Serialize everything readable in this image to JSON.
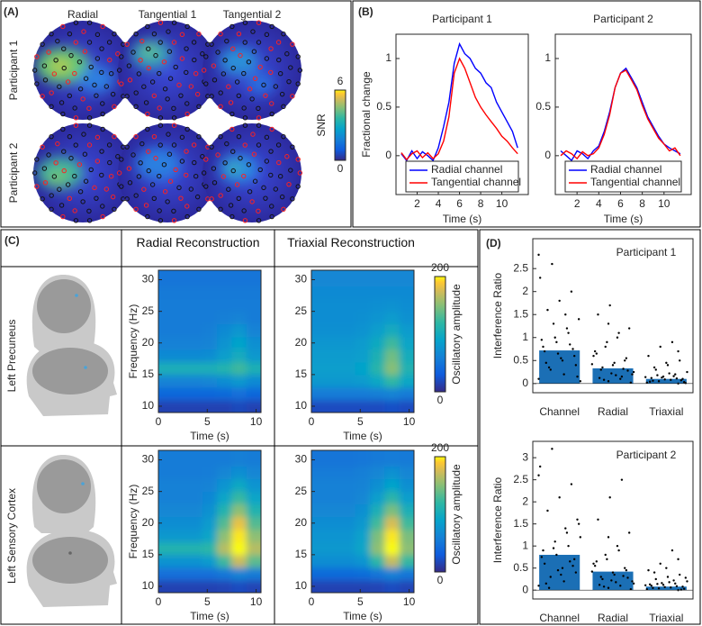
{
  "chart_data": [
    {
      "type": "topomap",
      "panel_label": "(A)",
      "columns": [
        "Radial",
        "Tangential 1",
        "Tangential 2"
      ],
      "rows": [
        "Participant 1",
        "Participant 2"
      ],
      "colorbar_label": "SNR",
      "clim": [
        0,
        6
      ],
      "cticks": [
        0,
        6
      ]
    },
    {
      "type": "line",
      "panel_label": "(B)",
      "title": "Participant 1",
      "xlabel": "Time (s)",
      "ylabel": "Fractional change",
      "x": [
        0.5,
        1,
        1.5,
        2,
        2.5,
        3,
        3.5,
        4,
        4.5,
        5,
        5.5,
        6,
        6.5,
        7,
        7.5,
        8,
        8.5,
        9,
        9.5,
        10,
        10.5,
        11,
        11.5
      ],
      "series": [
        {
          "name": "Radial channel",
          "color": "#0000ff",
          "values": [
            0.02,
            -0.05,
            0.05,
            -0.03,
            0.04,
            0.0,
            -0.05,
            0.08,
            0.3,
            0.55,
            0.95,
            1.15,
            1.05,
            1.0,
            0.9,
            0.85,
            0.75,
            0.7,
            0.55,
            0.45,
            0.35,
            0.25,
            0.08
          ]
        },
        {
          "name": "Tangential channel",
          "color": "#ff0000",
          "values": [
            0.03,
            -0.04,
            0.02,
            0.05,
            -0.02,
            0.03,
            -0.03,
            0.02,
            0.15,
            0.4,
            0.85,
            1.0,
            0.9,
            0.75,
            0.6,
            0.5,
            0.42,
            0.35,
            0.28,
            0.2,
            0.15,
            0.08,
            0.02
          ]
        }
      ],
      "xlim": [
        0,
        12.5
      ],
      "ylim": [
        -0.4,
        1.25
      ],
      "xticks": [
        2,
        4,
        6,
        8,
        10
      ],
      "yticks": [
        0,
        0.5,
        1
      ],
      "legend": "lower center"
    },
    {
      "type": "line",
      "title": "Participant 2",
      "xlabel": "Time (s)",
      "x": [
        0.5,
        1,
        1.5,
        2,
        2.5,
        3,
        3.5,
        4,
        4.5,
        5,
        5.5,
        6,
        6.5,
        7,
        7.5,
        8,
        8.5,
        9,
        9.5,
        10,
        10.5,
        11,
        11.5
      ],
      "series": [
        {
          "name": "Radial channel",
          "color": "#0000ff",
          "values": [
            0.05,
            0.0,
            -0.05,
            0.05,
            0.02,
            -0.03,
            0.05,
            0.1,
            0.25,
            0.45,
            0.7,
            0.85,
            0.9,
            0.8,
            0.7,
            0.55,
            0.4,
            0.3,
            0.2,
            0.12,
            0.08,
            0.05,
            0.02
          ]
        },
        {
          "name": "Tangential channel",
          "color": "#ff0000",
          "values": [
            0.0,
            0.05,
            0.02,
            -0.03,
            0.04,
            0.0,
            0.02,
            0.08,
            0.22,
            0.42,
            0.7,
            0.85,
            0.88,
            0.78,
            0.68,
            0.52,
            0.38,
            0.28,
            0.18,
            0.12,
            0.05,
            0.08,
            0.0
          ]
        }
      ],
      "xlim": [
        0,
        12.5
      ],
      "ylim": [
        -0.4,
        1.25
      ],
      "xticks": [
        2,
        4,
        6,
        8,
        10
      ],
      "yticks": [
        0,
        0.5,
        1
      ],
      "legend": "lower center"
    },
    {
      "type": "heatmap",
      "panel_label": "(C)",
      "title": "Radial Reconstruction",
      "row_label": "Left Precuneus",
      "xlabel": "Time (s)",
      "ylabel": "Frequency (Hz)",
      "x": [
        0.75,
        2.25,
        3.75,
        5.25,
        6.75,
        8.25,
        9.75
      ],
      "y": [
        10,
        12,
        14,
        16,
        18,
        20,
        22,
        24,
        26,
        28,
        30
      ],
      "z": [
        [
          15,
          15,
          15,
          15,
          15,
          18,
          15
        ],
        [
          40,
          40,
          40,
          40,
          42,
          45,
          40
        ],
        [
          62,
          62,
          62,
          64,
          70,
          80,
          68
        ],
        [
          105,
          105,
          105,
          105,
          112,
          125,
          108
        ],
        [
          68,
          68,
          68,
          70,
          85,
          100,
          80
        ],
        [
          60,
          60,
          60,
          62,
          75,
          90,
          72
        ],
        [
          56,
          56,
          56,
          58,
          68,
          78,
          62
        ],
        [
          55,
          55,
          55,
          55,
          58,
          62,
          56
        ],
        [
          55,
          55,
          55,
          55,
          55,
          56,
          55
        ],
        [
          54,
          54,
          54,
          54,
          54,
          54,
          54
        ],
        [
          50,
          50,
          50,
          50,
          50,
          50,
          50
        ]
      ],
      "xlim": [
        0,
        10.5
      ],
      "ylim": [
        9,
        31.5
      ],
      "xticks": [
        0,
        5,
        10
      ],
      "yticks": [
        10,
        15,
        20,
        25,
        30
      ],
      "clim": [
        0,
        200
      ]
    },
    {
      "type": "heatmap",
      "title": "Triaxial Reconstruction",
      "xlabel": "Time (s)",
      "colorbar_label": "Oscillatory amplitude",
      "x": [
        0.75,
        2.25,
        3.75,
        5.25,
        6.75,
        8.25,
        9.75
      ],
      "y": [
        10,
        12,
        14,
        16,
        18,
        20,
        22,
        24,
        26,
        28,
        30
      ],
      "z": [
        [
          20,
          20,
          20,
          20,
          20,
          22,
          20
        ],
        [
          55,
          55,
          55,
          55,
          58,
          62,
          56
        ],
        [
          80,
          80,
          80,
          82,
          95,
          120,
          95
        ],
        [
          85,
          85,
          85,
          90,
          115,
          150,
          110
        ],
        [
          82,
          82,
          82,
          86,
          108,
          142,
          102
        ],
        [
          78,
          78,
          78,
          82,
          98,
          125,
          92
        ],
        [
          72,
          72,
          72,
          75,
          85,
          100,
          82
        ],
        [
          70,
          70,
          70,
          72,
          76,
          82,
          74
        ],
        [
          70,
          70,
          70,
          70,
          72,
          74,
          70
        ],
        [
          68,
          68,
          68,
          68,
          68,
          68,
          68
        ],
        [
          65,
          65,
          65,
          65,
          65,
          65,
          65
        ]
      ],
      "xlim": [
        0,
        10.5
      ],
      "ylim": [
        9,
        31.5
      ],
      "xticks": [
        0,
        5,
        10
      ],
      "yticks": [
        10,
        15,
        20,
        25,
        30
      ],
      "clim": [
        0,
        200
      ],
      "cticks": [
        0,
        200
      ]
    },
    {
      "type": "heatmap",
      "row_label": "Left Sensory Cortex",
      "xlabel": "Time (s)",
      "ylabel": "Frequency (Hz)",
      "x": [
        0.75,
        2.25,
        3.75,
        5.25,
        6.75,
        8.25,
        9.75
      ],
      "y": [
        10,
        12,
        14,
        16,
        18,
        20,
        22,
        24,
        26,
        28,
        30
      ],
      "z": [
        [
          15,
          15,
          15,
          15,
          16,
          20,
          16
        ],
        [
          45,
          45,
          45,
          46,
          52,
          62,
          55
        ],
        [
          75,
          75,
          75,
          82,
          125,
          172,
          135
        ],
        [
          112,
          112,
          112,
          118,
          165,
          200,
          165
        ],
        [
          80,
          80,
          80,
          92,
          152,
          196,
          152
        ],
        [
          70,
          70,
          70,
          82,
          132,
          182,
          132
        ],
        [
          65,
          65,
          65,
          74,
          112,
          152,
          112
        ],
        [
          60,
          60,
          60,
          66,
          92,
          122,
          92
        ],
        [
          60,
          60,
          60,
          62,
          76,
          96,
          76
        ],
        [
          56,
          56,
          56,
          57,
          64,
          72,
          64
        ],
        [
          55,
          55,
          55,
          55,
          56,
          58,
          56
        ]
      ],
      "xlim": [
        0,
        10.5
      ],
      "ylim": [
        9,
        31.5
      ],
      "xticks": [
        0,
        5,
        10
      ],
      "yticks": [
        10,
        15,
        20,
        25,
        30
      ],
      "clim": [
        0,
        200
      ]
    },
    {
      "type": "heatmap",
      "xlabel": "Time (s)",
      "colorbar_label": "Oscillatory amplitude",
      "x": [
        0.75,
        2.25,
        3.75,
        5.25,
        6.75,
        8.25,
        9.75
      ],
      "y": [
        10,
        12,
        14,
        16,
        18,
        20,
        22,
        24,
        26,
        28,
        30
      ],
      "z": [
        [
          15,
          15,
          15,
          15,
          16,
          20,
          16
        ],
        [
          42,
          42,
          42,
          44,
          50,
          60,
          52
        ],
        [
          70,
          70,
          70,
          76,
          118,
          170,
          122
        ],
        [
          80,
          80,
          80,
          92,
          152,
          200,
          152
        ],
        [
          76,
          76,
          76,
          88,
          146,
          196,
          146
        ],
        [
          70,
          70,
          70,
          80,
          126,
          176,
          126
        ],
        [
          65,
          65,
          65,
          72,
          106,
          146,
          106
        ],
        [
          60,
          60,
          60,
          65,
          86,
          116,
          86
        ],
        [
          60,
          60,
          60,
          62,
          72,
          90,
          72
        ],
        [
          55,
          55,
          55,
          58,
          64,
          74,
          64
        ],
        [
          50,
          50,
          50,
          52,
          54,
          56,
          54
        ]
      ],
      "xlim": [
        0,
        10.5
      ],
      "ylim": [
        9,
        31.5
      ],
      "xticks": [
        0,
        5,
        10
      ],
      "yticks": [
        10,
        15,
        20,
        25,
        30
      ],
      "clim": [
        0,
        200
      ],
      "cticks": [
        0,
        200
      ]
    },
    {
      "type": "strip",
      "panel_label": "(D)",
      "title": "Participant 1",
      "ylabel": "Interference Ratio",
      "categories": [
        "Channel",
        "Radial",
        "Triaxial"
      ],
      "values": [
        0.72,
        0.33,
        0.1
      ],
      "color": "#1b6fb5",
      "points_color": "#000000",
      "points": [
        [
          0.1,
          0.3,
          0.5,
          0.6,
          0.8,
          1.0,
          1.2,
          1.4,
          1.6,
          1.8,
          2.0,
          2.3,
          2.6,
          0.2,
          0.4,
          0.7,
          0.9,
          1.1,
          0.05,
          0.35,
          0.55,
          0.75,
          0.95,
          1.3,
          1.5,
          0.15,
          0.45,
          0.65,
          0.85,
          2.8
        ],
        [
          0.05,
          0.1,
          0.2,
          0.3,
          0.4,
          0.5,
          0.6,
          0.8,
          1.0,
          1.2,
          1.5,
          1.7,
          0.15,
          0.25,
          0.35,
          0.45,
          0.55,
          0.7,
          0.9,
          1.1,
          0.02,
          0.12,
          0.22,
          0.32,
          0.42,
          0.08,
          0.18,
          0.28,
          0.65,
          1.3
        ],
        [
          0.0,
          0.02,
          0.05,
          0.08,
          0.1,
          0.12,
          0.15,
          0.2,
          0.25,
          0.3,
          0.4,
          0.5,
          0.6,
          0.8,
          0.9,
          0.03,
          0.06,
          0.09,
          0.11,
          0.14,
          0.18,
          0.22,
          0.07,
          0.04,
          0.13,
          0.16,
          0.01,
          0.35,
          0.45,
          0.7
        ]
      ],
      "ylim": [
        -0.2,
        3.15
      ],
      "yticks": [
        0,
        0.5,
        1,
        1.5,
        2,
        2.5
      ]
    },
    {
      "type": "strip",
      "title": "Participant 2",
      "ylabel": "Interference Ratio",
      "categories": [
        "Channel",
        "Radial",
        "Triaxial"
      ],
      "values": [
        0.8,
        0.42,
        0.08
      ],
      "color": "#1b6fb5",
      "points_color": "#000000",
      "points": [
        [
          0.1,
          0.3,
          0.5,
          0.7,
          0.9,
          1.1,
          1.3,
          1.5,
          1.8,
          2.1,
          2.4,
          2.8,
          3.2,
          0.2,
          0.4,
          0.6,
          0.8,
          1.0,
          1.2,
          0.05,
          0.35,
          0.55,
          0.75,
          0.95,
          1.4,
          1.6,
          0.15,
          0.45,
          0.65,
          2.6
        ],
        [
          0.05,
          0.1,
          0.2,
          0.3,
          0.4,
          0.5,
          0.6,
          0.8,
          1.0,
          1.3,
          1.6,
          2.1,
          2.5,
          0.15,
          0.25,
          0.35,
          0.45,
          0.55,
          0.7,
          0.9,
          0.02,
          0.12,
          0.22,
          0.32,
          0.42,
          0.08,
          0.18,
          0.28,
          0.65,
          1.2
        ],
        [
          0.0,
          0.02,
          0.04,
          0.06,
          0.08,
          0.1,
          0.12,
          0.15,
          0.2,
          0.25,
          0.3,
          0.35,
          0.45,
          0.6,
          0.9,
          0.03,
          0.05,
          0.07,
          0.09,
          0.11,
          0.14,
          0.18,
          0.01,
          0.13,
          0.16,
          0.22,
          0.28,
          0.4,
          0.5,
          0.7
        ]
      ],
      "ylim": [
        -0.2,
        3.37
      ],
      "yticks": [
        0,
        0.5,
        1,
        1.5,
        2,
        2.5,
        3
      ]
    }
  ]
}
